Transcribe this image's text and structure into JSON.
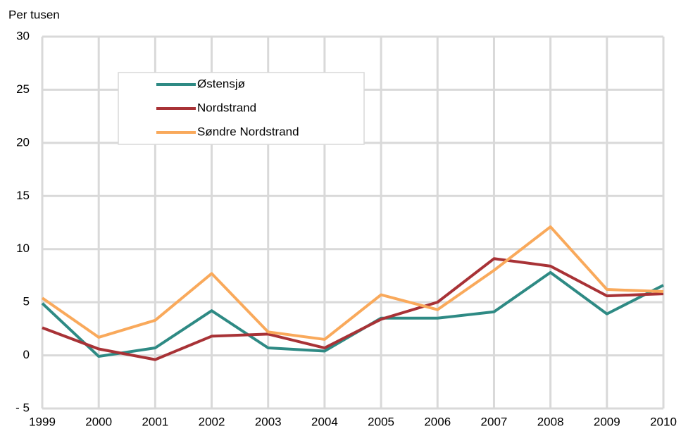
{
  "chart_data": {
    "type": "line",
    "y_axis_label": "Per tusen",
    "x": [
      1999,
      2000,
      2001,
      2002,
      2003,
      2004,
      2005,
      2006,
      2007,
      2008,
      2009,
      2010
    ],
    "xlim": [
      1999,
      2010
    ],
    "xticks": [
      1999,
      2000,
      2001,
      2002,
      2003,
      2004,
      2005,
      2006,
      2007,
      2008,
      2009,
      2010
    ],
    "ylim": [
      -5,
      30
    ],
    "yticks": [
      {
        "value": -5,
        "label": "- 5"
      },
      0,
      5,
      10,
      15,
      20,
      25,
      30
    ],
    "grid": true,
    "legend": "upper left",
    "series": [
      {
        "name": "Østensjø",
        "color": "#2e8a84",
        "values": [
          4.9,
          -0.1,
          0.7,
          4.2,
          0.7,
          0.4,
          3.5,
          3.5,
          4.1,
          7.8,
          3.9,
          6.6
        ]
      },
      {
        "name": "Nordstrand",
        "color": "#a83236",
        "values": [
          2.6,
          0.6,
          -0.4,
          1.8,
          2.0,
          0.7,
          3.4,
          5.0,
          9.1,
          8.4,
          5.6,
          5.8
        ]
      },
      {
        "name": "Søndre Nordstrand",
        "color": "#f9a95b",
        "values": [
          5.4,
          1.7,
          3.3,
          7.7,
          2.2,
          1.5,
          5.7,
          4.3,
          8.0,
          12.1,
          6.2,
          6.0
        ]
      }
    ]
  }
}
